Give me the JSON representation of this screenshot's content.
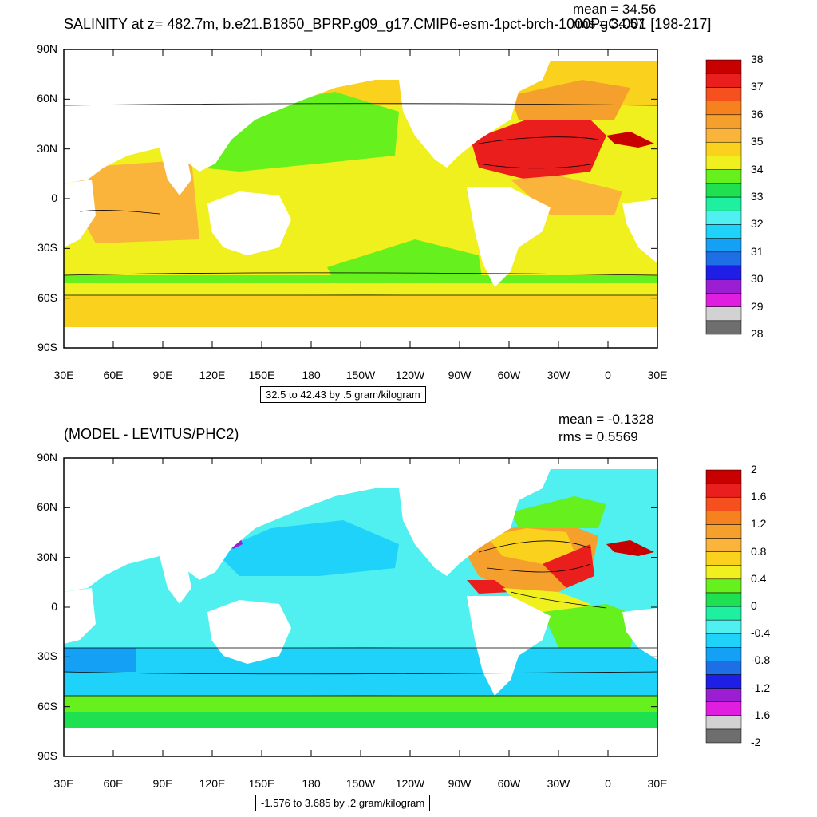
{
  "maps": [
    {
      "id": "salinity",
      "title": "SALINITY at z= 482.7m, b.e21.B1850_BPRP.g09_g17.CMIP6-esm-1pct-brch-1000PgC.001 [198-217]",
      "mean_text": "mean = 34.56",
      "rms_text": "rms = 34.57",
      "range_text": "32.5 to 42.43 by .5 gram/kilogram",
      "colorbar": {
        "colors": [
          "#6e6e6e",
          "#d2d2d2",
          "#e01ee0",
          "#9b1ed2",
          "#1e1ee6",
          "#1e6ee6",
          "#14a0f5",
          "#1ed2fa",
          "#50f0f0",
          "#1ef0a0",
          "#1ee050",
          "#66f01e",
          "#f0f01e",
          "#fad21e",
          "#fab43c",
          "#f5a02d",
          "#f5821e",
          "#f5501e",
          "#eb1e1e",
          "#c80000"
        ],
        "labels": [
          "28",
          "29",
          "30",
          "31",
          "32",
          "33",
          "34",
          "35",
          "36",
          "37",
          "38"
        ]
      }
    },
    {
      "id": "difference",
      "title": "(MODEL - LEVITUS/PHC2)",
      "mean_text": "mean = -0.1328",
      "rms_text": "rms = 0.5569",
      "range_text": "-1.576 to 3.685 by .2 gram/kilogram",
      "colorbar": {
        "colors": [
          "#6e6e6e",
          "#d2d2d2",
          "#e01ee0",
          "#9b1ed2",
          "#1e1ee6",
          "#1e6ee6",
          "#14a0f5",
          "#1ed2fa",
          "#50f0f0",
          "#1ef0a0",
          "#1ee050",
          "#66f01e",
          "#f0f01e",
          "#fad21e",
          "#fab43c",
          "#f5a02d",
          "#f5821e",
          "#f5501e",
          "#eb1e1e",
          "#c80000"
        ],
        "labels": [
          "-2",
          "-1.6",
          "-1.2",
          "-0.8",
          "-0.4",
          "0",
          "0.4",
          "0.8",
          "1.2",
          "1.6",
          "2"
        ]
      }
    }
  ],
  "axes": {
    "lat_labels": [
      "90N",
      "60N",
      "30N",
      "0",
      "30S",
      "60S",
      "90S"
    ],
    "lon_labels": [
      "30E",
      "60E",
      "90E",
      "120E",
      "150E",
      "180",
      "150W",
      "120W",
      "90W",
      "60W",
      "30W",
      "0",
      "30E"
    ]
  },
  "colors": {
    "land": "#ffffff",
    "frame": "#000000"
  }
}
